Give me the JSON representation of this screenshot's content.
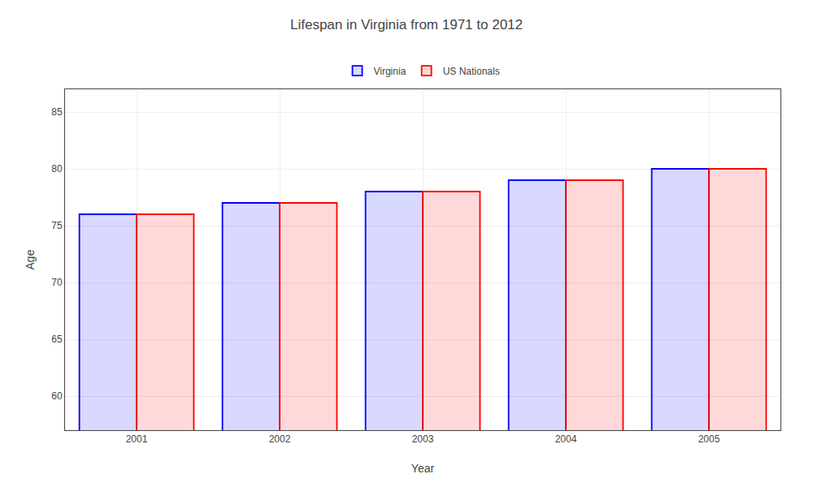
{
  "chart_data": {
    "type": "bar",
    "title": "Lifespan in Virginia from 1971 to 2012",
    "x_label": "Year",
    "y_label": "Age",
    "categories": [
      "2001",
      "2002",
      "2003",
      "2004",
      "2005"
    ],
    "series": [
      {
        "name": "Virginia",
        "color": "#0000ff",
        "values": [
          76,
          77,
          78,
          79,
          80
        ]
      },
      {
        "name": "US Nationals",
        "color": "#ff0000",
        "values": [
          76,
          77,
          78,
          79,
          80
        ]
      }
    ],
    "ylim": [
      57,
      87
    ],
    "yticks": [
      60,
      65,
      70,
      75,
      80,
      85
    ],
    "grid": true,
    "legend": "upper center"
  }
}
